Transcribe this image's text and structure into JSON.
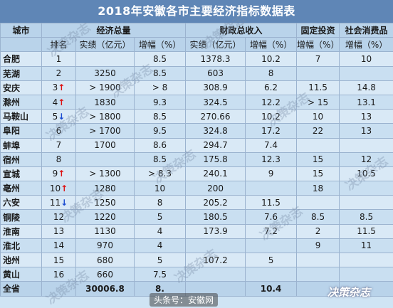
{
  "title": "2018年安徽各市主要经济指标数据表",
  "headers": {
    "city": "城市",
    "gdp": "经济总量",
    "fiscal": "财政总收入",
    "fixed": "固定投资",
    "retail": "社会消费品",
    "rank": "排名",
    "actual_gdp": "实绩（亿元）",
    "growth": "增幅（%）",
    "actual_fiscal": "实绩（亿元）"
  },
  "rows": [
    {
      "city": "合肥",
      "rank": "1",
      "rank_arrow": "",
      "gdp": "",
      "gdp_growth": "8.5",
      "fiscal": "1378.3",
      "fiscal_growth": "10.2",
      "fixed": "7",
      "retail": "10"
    },
    {
      "city": "芜湖",
      "rank": "2",
      "rank_arrow": "",
      "gdp": "3250",
      "gdp_growth": "8.5",
      "fiscal": "603",
      "fiscal_growth": "8",
      "fixed": "",
      "retail": ""
    },
    {
      "city": "安庆",
      "rank": "3",
      "rank_arrow": "↑",
      "gdp": "> 1900",
      "gdp_growth": "> 8",
      "fiscal": "308.9",
      "fiscal_growth": "6.2",
      "fixed": "11.5",
      "retail": "14.8"
    },
    {
      "city": "滁州",
      "rank": "4",
      "rank_arrow": "↑",
      "gdp": "1830",
      "gdp_growth": "9.3",
      "fiscal": "324.5",
      "fiscal_growth": "12.2",
      "fixed": "> 15",
      "retail": "13.1"
    },
    {
      "city": "马鞍山",
      "rank": "5",
      "rank_arrow": "↓",
      "gdp": "> 1800",
      "gdp_growth": "8.5",
      "fiscal": "270.66",
      "fiscal_growth": "10.2",
      "fixed": "10",
      "retail": "13"
    },
    {
      "city": "阜阳",
      "rank": "6",
      "rank_arrow": "",
      "gdp": "> 1700",
      "gdp_growth": "9.5",
      "fiscal": "324.8",
      "fiscal_growth": "17.2",
      "fixed": "22",
      "retail": "13"
    },
    {
      "city": "蚌埠",
      "rank": "7",
      "rank_arrow": "",
      "gdp": "1700",
      "gdp_growth": "8.6",
      "fiscal": "294.7",
      "fiscal_growth": "7.4",
      "fixed": "",
      "retail": ""
    },
    {
      "city": "宿州",
      "rank": "8",
      "rank_arrow": "",
      "gdp": "",
      "gdp_growth": "8.5",
      "fiscal": "175.8",
      "fiscal_growth": "12.3",
      "fixed": "15",
      "retail": "12"
    },
    {
      "city": "宣城",
      "rank": "9",
      "rank_arrow": "↑",
      "gdp": "> 1300",
      "gdp_growth": "> 8.3",
      "fiscal": "240.1",
      "fiscal_growth": "9",
      "fixed": "15",
      "retail": "10.5"
    },
    {
      "city": "亳州",
      "rank": "10",
      "rank_arrow": "↑",
      "gdp": "1280",
      "gdp_growth": "10",
      "fiscal": "200",
      "fiscal_growth": "",
      "fixed": "18",
      "retail": ""
    },
    {
      "city": "六安",
      "rank": "11",
      "rank_arrow": "↓",
      "gdp": "1250",
      "gdp_growth": "8",
      "fiscal": "205.2",
      "fiscal_growth": "11.5",
      "fixed": "",
      "retail": ""
    },
    {
      "city": "铜陵",
      "rank": "12",
      "rank_arrow": "",
      "gdp": "1220",
      "gdp_growth": "5",
      "fiscal": "180.5",
      "fiscal_growth": "7.6",
      "fixed": "8.5",
      "retail": "8.5"
    },
    {
      "city": "淮南",
      "rank": "13",
      "rank_arrow": "",
      "gdp": "1130",
      "gdp_growth": "4",
      "fiscal": "173.9",
      "fiscal_growth": "7.2",
      "fixed": "2",
      "retail": "11.5"
    },
    {
      "city": "淮北",
      "rank": "14",
      "rank_arrow": "",
      "gdp": "970",
      "gdp_growth": "4",
      "fiscal": "",
      "fiscal_growth": "",
      "fixed": "9",
      "retail": "11"
    },
    {
      "city": "池州",
      "rank": "15",
      "rank_arrow": "",
      "gdp": "680",
      "gdp_growth": "5",
      "fiscal": "107.2",
      "fiscal_growth": "5",
      "fixed": "",
      "retail": ""
    },
    {
      "city": "黄山",
      "rank": "16",
      "rank_arrow": "",
      "gdp": "660",
      "gdp_growth": "7.5",
      "fiscal": "",
      "fiscal_growth": "",
      "fixed": "",
      "retail": ""
    },
    {
      "city": "全省",
      "rank": "",
      "rank_arrow": "",
      "gdp": "30006.8",
      "gdp_growth": "8.",
      "fiscal": "",
      "fiscal_growth": "10.4",
      "fixed": "",
      "retail": ""
    }
  ],
  "watermarks": [
    "决策杂志",
    "决策杂志",
    "决策杂志",
    "决策杂志",
    "决策杂志",
    "决策杂志",
    "决策杂志",
    "决策杂志",
    "决策杂志",
    "决策杂志",
    "决策杂志"
  ],
  "source_watermark": "头条号：安徽网",
  "logo_text": "决策杂志"
}
